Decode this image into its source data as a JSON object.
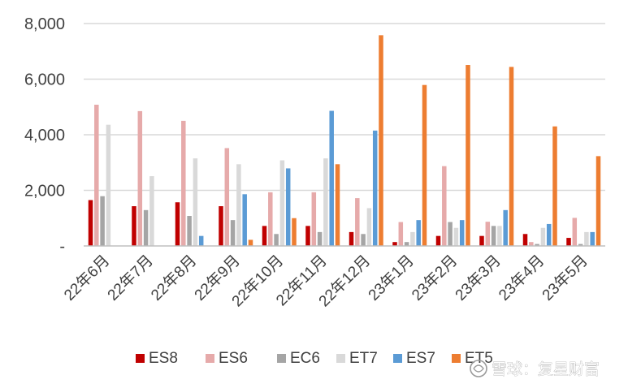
{
  "chart_data": {
    "type": "bar",
    "title": "",
    "xlabel": "",
    "ylabel": "",
    "categories": [
      "22年6月",
      "22年7月",
      "22年8月",
      "22年9月",
      "22年10月",
      "22年11月",
      "22年12月",
      "23年1月",
      "23年2月",
      "23年3月",
      "23年4月",
      "23年5月"
    ],
    "ylim": [
      0,
      8000
    ],
    "yticks": [
      0,
      2000,
      4000,
      6000,
      8000
    ],
    "ytick_labels": [
      "-",
      "2,000",
      "4,000",
      "6,000",
      "8,000"
    ],
    "grid": true,
    "legend_position": "bottom",
    "series": [
      {
        "name": "ES8",
        "color": "#c00000",
        "values": [
          1650,
          1430,
          1570,
          1430,
          720,
          720,
          500,
          140,
          360,
          360,
          430,
          290
        ]
      },
      {
        "name": "ES6",
        "color": "#e6aaaa",
        "values": [
          5080,
          4850,
          4500,
          3520,
          1930,
          1930,
          1720,
          860,
          2870,
          870,
          140,
          1010
        ]
      },
      {
        "name": "EC6",
        "color": "#a5a5a5",
        "values": [
          1790,
          1290,
          1080,
          930,
          430,
          500,
          430,
          140,
          860,
          720,
          70,
          70
        ]
      },
      {
        "name": "ET7",
        "color": "#d9d9d9",
        "values": [
          4360,
          2510,
          3150,
          2940,
          3080,
          3150,
          1360,
          500,
          650,
          720,
          650,
          500
        ]
      },
      {
        "name": "ES7",
        "color": "#5b9bd5",
        "values": [
          0,
          0,
          360,
          1860,
          2790,
          4860,
          4150,
          930,
          930,
          1290,
          790,
          500
        ]
      },
      {
        "name": "ET5",
        "color": "#ed7d31",
        "values": [
          0,
          0,
          0,
          220,
          1000,
          2940,
          7580,
          5790,
          6510,
          6440,
          4300,
          3230
        ]
      }
    ]
  },
  "colors": {
    "gridline": "#d9d9d9",
    "axis": "#bfbfbf",
    "text": "#404040"
  },
  "watermark": {
    "text": "雪球：复星财富",
    "icon": "snowball-logo-icon"
  }
}
